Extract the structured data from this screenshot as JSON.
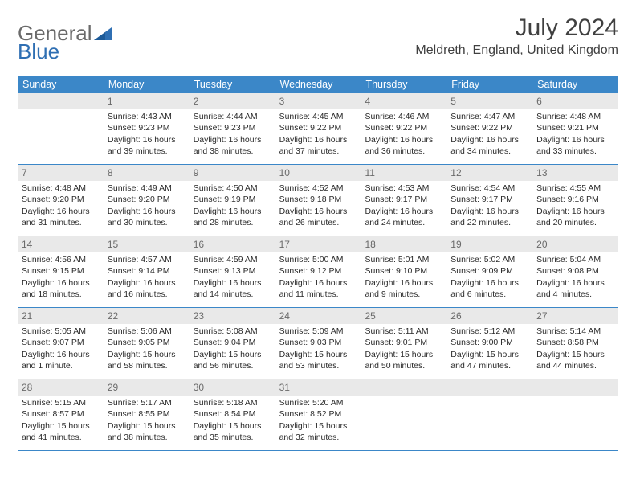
{
  "logo": {
    "general": "General",
    "blue": "Blue"
  },
  "title": "July 2024",
  "location": "Meldreth, England, United Kingdom",
  "colors": {
    "header_bg": "#3b87c8",
    "header_text": "#ffffff",
    "daynum_bg": "#e9e9e9",
    "daynum_text": "#6a6a6a",
    "body_text": "#2b2b2b",
    "logo_gray": "#6a6a6a",
    "logo_blue": "#2f6fb3",
    "border": "#3b87c8"
  },
  "dayNames": [
    "Sunday",
    "Monday",
    "Tuesday",
    "Wednesday",
    "Thursday",
    "Friday",
    "Saturday"
  ],
  "weeks": [
    [
      null,
      {
        "num": "1",
        "sunrise": "Sunrise: 4:43 AM",
        "sunset": "Sunset: 9:23 PM",
        "daylight": "Daylight: 16 hours and 39 minutes."
      },
      {
        "num": "2",
        "sunrise": "Sunrise: 4:44 AM",
        "sunset": "Sunset: 9:23 PM",
        "daylight": "Daylight: 16 hours and 38 minutes."
      },
      {
        "num": "3",
        "sunrise": "Sunrise: 4:45 AM",
        "sunset": "Sunset: 9:22 PM",
        "daylight": "Daylight: 16 hours and 37 minutes."
      },
      {
        "num": "4",
        "sunrise": "Sunrise: 4:46 AM",
        "sunset": "Sunset: 9:22 PM",
        "daylight": "Daylight: 16 hours and 36 minutes."
      },
      {
        "num": "5",
        "sunrise": "Sunrise: 4:47 AM",
        "sunset": "Sunset: 9:22 PM",
        "daylight": "Daylight: 16 hours and 34 minutes."
      },
      {
        "num": "6",
        "sunrise": "Sunrise: 4:48 AM",
        "sunset": "Sunset: 9:21 PM",
        "daylight": "Daylight: 16 hours and 33 minutes."
      }
    ],
    [
      {
        "num": "7",
        "sunrise": "Sunrise: 4:48 AM",
        "sunset": "Sunset: 9:20 PM",
        "daylight": "Daylight: 16 hours and 31 minutes."
      },
      {
        "num": "8",
        "sunrise": "Sunrise: 4:49 AM",
        "sunset": "Sunset: 9:20 PM",
        "daylight": "Daylight: 16 hours and 30 minutes."
      },
      {
        "num": "9",
        "sunrise": "Sunrise: 4:50 AM",
        "sunset": "Sunset: 9:19 PM",
        "daylight": "Daylight: 16 hours and 28 minutes."
      },
      {
        "num": "10",
        "sunrise": "Sunrise: 4:52 AM",
        "sunset": "Sunset: 9:18 PM",
        "daylight": "Daylight: 16 hours and 26 minutes."
      },
      {
        "num": "11",
        "sunrise": "Sunrise: 4:53 AM",
        "sunset": "Sunset: 9:17 PM",
        "daylight": "Daylight: 16 hours and 24 minutes."
      },
      {
        "num": "12",
        "sunrise": "Sunrise: 4:54 AM",
        "sunset": "Sunset: 9:17 PM",
        "daylight": "Daylight: 16 hours and 22 minutes."
      },
      {
        "num": "13",
        "sunrise": "Sunrise: 4:55 AM",
        "sunset": "Sunset: 9:16 PM",
        "daylight": "Daylight: 16 hours and 20 minutes."
      }
    ],
    [
      {
        "num": "14",
        "sunrise": "Sunrise: 4:56 AM",
        "sunset": "Sunset: 9:15 PM",
        "daylight": "Daylight: 16 hours and 18 minutes."
      },
      {
        "num": "15",
        "sunrise": "Sunrise: 4:57 AM",
        "sunset": "Sunset: 9:14 PM",
        "daylight": "Daylight: 16 hours and 16 minutes."
      },
      {
        "num": "16",
        "sunrise": "Sunrise: 4:59 AM",
        "sunset": "Sunset: 9:13 PM",
        "daylight": "Daylight: 16 hours and 14 minutes."
      },
      {
        "num": "17",
        "sunrise": "Sunrise: 5:00 AM",
        "sunset": "Sunset: 9:12 PM",
        "daylight": "Daylight: 16 hours and 11 minutes."
      },
      {
        "num": "18",
        "sunrise": "Sunrise: 5:01 AM",
        "sunset": "Sunset: 9:10 PM",
        "daylight": "Daylight: 16 hours and 9 minutes."
      },
      {
        "num": "19",
        "sunrise": "Sunrise: 5:02 AM",
        "sunset": "Sunset: 9:09 PM",
        "daylight": "Daylight: 16 hours and 6 minutes."
      },
      {
        "num": "20",
        "sunrise": "Sunrise: 5:04 AM",
        "sunset": "Sunset: 9:08 PM",
        "daylight": "Daylight: 16 hours and 4 minutes."
      }
    ],
    [
      {
        "num": "21",
        "sunrise": "Sunrise: 5:05 AM",
        "sunset": "Sunset: 9:07 PM",
        "daylight": "Daylight: 16 hours and 1 minute."
      },
      {
        "num": "22",
        "sunrise": "Sunrise: 5:06 AM",
        "sunset": "Sunset: 9:05 PM",
        "daylight": "Daylight: 15 hours and 58 minutes."
      },
      {
        "num": "23",
        "sunrise": "Sunrise: 5:08 AM",
        "sunset": "Sunset: 9:04 PM",
        "daylight": "Daylight: 15 hours and 56 minutes."
      },
      {
        "num": "24",
        "sunrise": "Sunrise: 5:09 AM",
        "sunset": "Sunset: 9:03 PM",
        "daylight": "Daylight: 15 hours and 53 minutes."
      },
      {
        "num": "25",
        "sunrise": "Sunrise: 5:11 AM",
        "sunset": "Sunset: 9:01 PM",
        "daylight": "Daylight: 15 hours and 50 minutes."
      },
      {
        "num": "26",
        "sunrise": "Sunrise: 5:12 AM",
        "sunset": "Sunset: 9:00 PM",
        "daylight": "Daylight: 15 hours and 47 minutes."
      },
      {
        "num": "27",
        "sunrise": "Sunrise: 5:14 AM",
        "sunset": "Sunset: 8:58 PM",
        "daylight": "Daylight: 15 hours and 44 minutes."
      }
    ],
    [
      {
        "num": "28",
        "sunrise": "Sunrise: 5:15 AM",
        "sunset": "Sunset: 8:57 PM",
        "daylight": "Daylight: 15 hours and 41 minutes."
      },
      {
        "num": "29",
        "sunrise": "Sunrise: 5:17 AM",
        "sunset": "Sunset: 8:55 PM",
        "daylight": "Daylight: 15 hours and 38 minutes."
      },
      {
        "num": "30",
        "sunrise": "Sunrise: 5:18 AM",
        "sunset": "Sunset: 8:54 PM",
        "daylight": "Daylight: 15 hours and 35 minutes."
      },
      {
        "num": "31",
        "sunrise": "Sunrise: 5:20 AM",
        "sunset": "Sunset: 8:52 PM",
        "daylight": "Daylight: 15 hours and 32 minutes."
      },
      null,
      null,
      null
    ]
  ]
}
